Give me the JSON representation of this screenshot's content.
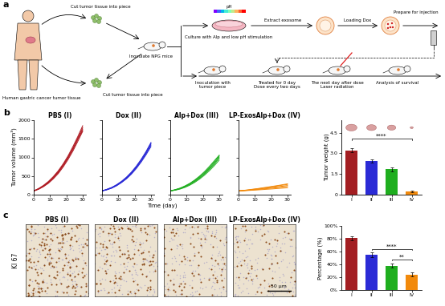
{
  "panel_a": {
    "label": "a",
    "texts": {
      "human": "Human gastric cancer tumor tissue",
      "cut_top": "Cut tumor tissue into piece",
      "inoculate": "Inoculate NPG mice",
      "cut_bottom": "Cut tumor tissue into piece",
      "culture": "Culture with Alp and low pH stimulation",
      "ph": "pH",
      "extract": "Extract exosome",
      "loading": "Loading Dox",
      "prepare": "Prepare for injection",
      "timeline": [
        "Inoculation with\ntumor piece",
        "Treated for 0 day\nDose every two days",
        "The next day after dose\nLaser radiation",
        "Analysis of survival"
      ]
    }
  },
  "panel_b": {
    "label": "b",
    "x_label": "Time (day)"
  },
  "panel_c": {
    "label": "c",
    "y_label": "KI 67",
    "scale_bar": "50 μm",
    "image_titles": [
      "PBS (I)",
      "Dox (II)",
      "Alp+Dox (III)",
      "LP-ExosAlp+Dox (IV)"
    ]
  },
  "chart_data": [
    {
      "type": "line",
      "title": "PBS (I)",
      "color": "#b01c24",
      "y_label": "Tumor volume (mm³)",
      "x": [
        0,
        3,
        6,
        9,
        12,
        15,
        18,
        21,
        24,
        27,
        30
      ],
      "series": [
        {
          "values": [
            100,
            160,
            240,
            340,
            470,
            620,
            800,
            1010,
            1250,
            1520,
            1800
          ]
        },
        {
          "values": [
            100,
            150,
            225,
            320,
            445,
            590,
            770,
            975,
            1210,
            1480,
            1760
          ]
        },
        {
          "values": [
            100,
            155,
            230,
            330,
            455,
            605,
            785,
            995,
            1230,
            1500,
            1720
          ]
        },
        {
          "values": [
            100,
            145,
            215,
            305,
            425,
            565,
            740,
            940,
            1170,
            1430,
            1700
          ]
        },
        {
          "values": [
            100,
            165,
            250,
            355,
            485,
            640,
            825,
            1040,
            1290,
            1560,
            1850
          ]
        }
      ],
      "xlim": [
        0,
        32
      ],
      "ylim": [
        0,
        2000
      ],
      "xticks": [
        0,
        10,
        20,
        30
      ],
      "yticks": [
        0,
        500,
        1000,
        1500,
        2000
      ]
    },
    {
      "type": "line",
      "title": "Dox (II)",
      "color": "#2b2bd6",
      "tick_labels": "x",
      "x": [
        0,
        3,
        6,
        9,
        12,
        15,
        18,
        21,
        24,
        27,
        30
      ],
      "series": [
        {
          "values": [
            100,
            140,
            190,
            260,
            350,
            460,
            590,
            750,
            930,
            1140,
            1380
          ]
        },
        {
          "values": [
            100,
            135,
            180,
            250,
            335,
            440,
            570,
            720,
            900,
            1100,
            1330
          ]
        },
        {
          "values": [
            100,
            145,
            195,
            270,
            360,
            470,
            605,
            765,
            950,
            1160,
            1400
          ]
        },
        {
          "values": [
            100,
            130,
            175,
            240,
            325,
            425,
            550,
            700,
            875,
            1070,
            1290
          ]
        },
        {
          "values": [
            100,
            138,
            185,
            255,
            342,
            450,
            580,
            735,
            915,
            1120,
            1360
          ]
        }
      ],
      "xlim": [
        0,
        32
      ],
      "ylim": [
        0,
        2000
      ],
      "xticks": [
        0,
        10,
        20,
        30
      ],
      "yticks": [
        0,
        500,
        1000,
        1500,
        2000
      ]
    },
    {
      "type": "line",
      "title": "Alp+Dox (III)",
      "color": "#1fae1f",
      "tick_labels": "x",
      "x": [
        0,
        3,
        6,
        9,
        12,
        15,
        18,
        21,
        24,
        27,
        30
      ],
      "series": [
        {
          "values": [
            100,
            130,
            170,
            225,
            295,
            380,
            480,
            600,
            730,
            880,
            1040
          ]
        },
        {
          "values": [
            100,
            125,
            160,
            210,
            275,
            350,
            445,
            555,
            680,
            820,
            980
          ]
        },
        {
          "values": [
            100,
            135,
            175,
            235,
            305,
            395,
            500,
            620,
            760,
            910,
            1060
          ]
        },
        {
          "values": [
            100,
            120,
            150,
            195,
            255,
            330,
            420,
            525,
            645,
            780,
            930
          ]
        },
        {
          "values": [
            100,
            128,
            165,
            215,
            285,
            365,
            460,
            575,
            705,
            850,
            1010
          ]
        }
      ],
      "xlim": [
        0,
        32
      ],
      "ylim": [
        0,
        2000
      ],
      "xticks": [
        0,
        10,
        20,
        30
      ],
      "yticks": [
        0,
        500,
        1000,
        1500,
        2000
      ]
    },
    {
      "type": "line",
      "title": "LP-ExosAlp+Dox (IV)",
      "color": "#f28a0c",
      "tick_labels": "x",
      "x": [
        0,
        3,
        6,
        9,
        12,
        15,
        18,
        21,
        24,
        27,
        30
      ],
      "series": [
        {
          "values": [
            100,
            110,
            122,
            135,
            150,
            165,
            180,
            195,
            210,
            228,
            245
          ]
        },
        {
          "values": [
            100,
            115,
            130,
            148,
            165,
            185,
            205,
            225,
            245,
            268,
            290
          ]
        },
        {
          "values": [
            100,
            108,
            118,
            128,
            140,
            152,
            165,
            178,
            190,
            205,
            220
          ]
        },
        {
          "values": [
            100,
            112,
            126,
            142,
            158,
            176,
            195,
            215,
            235,
            255,
            275
          ]
        },
        {
          "values": [
            100,
            105,
            112,
            120,
            128,
            137,
            146,
            155,
            165,
            175,
            185
          ]
        }
      ],
      "xlim": [
        0,
        32
      ],
      "ylim": [
        0,
        2000
      ],
      "xticks": [
        0,
        10,
        20,
        30
      ],
      "yticks": [
        0,
        500,
        1000,
        1500,
        2000
      ]
    },
    {
      "type": "bar",
      "y_label": "Tumor weight (g)",
      "categories": [
        "I",
        "II",
        "III",
        "IV"
      ],
      "values": [
        3.2,
        2.45,
        1.85,
        0.25
      ],
      "errors": [
        0.15,
        0.12,
        0.14,
        0.05
      ],
      "colors": [
        "#a31e22",
        "#2b2bd6",
        "#1fae1f",
        "#f28a0c"
      ],
      "ylim": [
        0,
        5.4
      ],
      "yticks": [
        0,
        1.5,
        3.0,
        4.5
      ],
      "significance": [
        {
          "from": "I",
          "to": "IV",
          "y": 4.05,
          "label": "****"
        }
      ]
    },
    {
      "type": "bar",
      "y_label": "Percentage (%)",
      "categories": [
        "I",
        "II",
        "III",
        "IV"
      ],
      "values": [
        81,
        55,
        38,
        24
      ],
      "errors": [
        3,
        4,
        3,
        3
      ],
      "colors": [
        "#a31e22",
        "#2b2bd6",
        "#1fae1f",
        "#f28a0c"
      ],
      "ylim": [
        0,
        100
      ],
      "yticks": [
        {
          "value": 0,
          "label": "0%"
        },
        {
          "value": 20,
          "label": "20%"
        },
        {
          "value": 40,
          "label": "40%"
        },
        {
          "value": 60,
          "label": "60%"
        },
        {
          "value": 80,
          "label": "80%"
        },
        {
          "value": 100,
          "label": "100%"
        }
      ],
      "significance": [
        {
          "from": "II",
          "to": "IV",
          "y": 64,
          "label": "****"
        },
        {
          "from": "III",
          "to": "IV",
          "y": 48,
          "label": "**"
        }
      ]
    }
  ]
}
